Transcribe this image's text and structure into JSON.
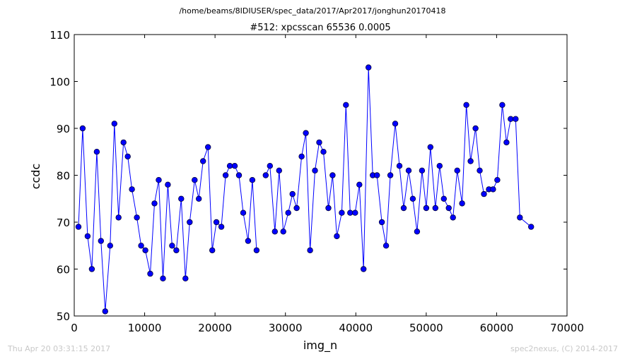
{
  "header": {
    "path": "/home/beams/8IDIUSER/spec_data/2017/Apr2017/jonghun20170418"
  },
  "footer": {
    "timestamp": "Thu Apr 20 03:31:15 2017",
    "credit": "spec2nexus, (C) 2014-2017"
  },
  "colors": {
    "series": "#0000ff",
    "marker_fill": "#0000ff",
    "axis": "#000000",
    "footer_text": "#c8c8c8"
  },
  "chart_data": {
    "type": "line",
    "title": "#512: xpcsscan 65536 0.0005",
    "xlabel": "img_n",
    "ylabel": "ccdc",
    "xlim": [
      0,
      70000
    ],
    "ylim": [
      50,
      110
    ],
    "xticks": [
      0,
      10000,
      20000,
      30000,
      40000,
      50000,
      60000,
      70000
    ],
    "yticks": [
      50,
      60,
      70,
      80,
      90,
      100,
      110
    ],
    "grid": false,
    "legend": "none",
    "marker": "circle",
    "series": [
      {
        "x": [
          600,
          1200,
          1900,
          2500,
          3200,
          3800,
          4400,
          5100,
          5700,
          6300,
          7000,
          7600,
          8200,
          8900,
          9500,
          10100,
          10800,
          11400,
          12000,
          12600,
          13300,
          13900,
          14500,
          15200,
          15800,
          16400,
          17100,
          17700,
          18300,
          19000,
          19600,
          20200,
          20900,
          21500,
          22100,
          22800,
          23400,
          24000,
          24700,
          25300,
          25900,
          26600,
          27200,
          27800,
          28500,
          29100,
          29700,
          30400,
          31000,
          31600,
          32300,
          32900,
          33500,
          34200,
          34800,
          35400,
          36100,
          36700,
          37300,
          38000,
          38600,
          39200,
          39900,
          40500,
          41100,
          41800,
          42400,
          43000,
          43700,
          44300,
          44900,
          45600,
          46200,
          46800,
          47500,
          48100,
          48700,
          49400,
          50000,
          50600,
          51300,
          51900,
          52500,
          53200,
          53800,
          54400,
          55100,
          55700,
          56300,
          57000,
          57600,
          58200,
          58900,
          59500,
          60100,
          60800,
          61400,
          62000,
          62700,
          63300,
          64900,
          65500,
          65700
        ],
        "y": [
          69,
          90,
          67,
          60,
          85,
          66,
          51,
          65,
          91,
          71,
          87,
          84,
          77,
          71,
          65,
          64,
          59,
          74,
          79,
          58,
          78,
          65,
          64,
          75,
          58,
          70,
          79,
          75,
          83,
          86,
          64,
          70,
          69,
          80,
          82,
          82,
          80,
          72,
          66,
          79,
          64,
          null,
          80,
          82,
          68,
          81,
          68,
          72,
          76,
          73,
          84,
          89,
          64,
          81,
          87,
          85,
          73,
          80,
          67,
          72,
          95,
          72,
          72,
          78,
          60,
          103,
          80,
          80,
          70,
          65,
          80,
          91,
          82,
          73,
          81,
          75,
          68,
          81,
          73,
          86,
          73,
          82,
          75,
          73,
          71,
          81,
          74,
          95,
          83,
          90,
          81,
          76,
          77,
          77,
          79,
          95,
          87,
          92,
          92,
          71,
          69,
          null,
          null
        ]
      }
    ]
  }
}
